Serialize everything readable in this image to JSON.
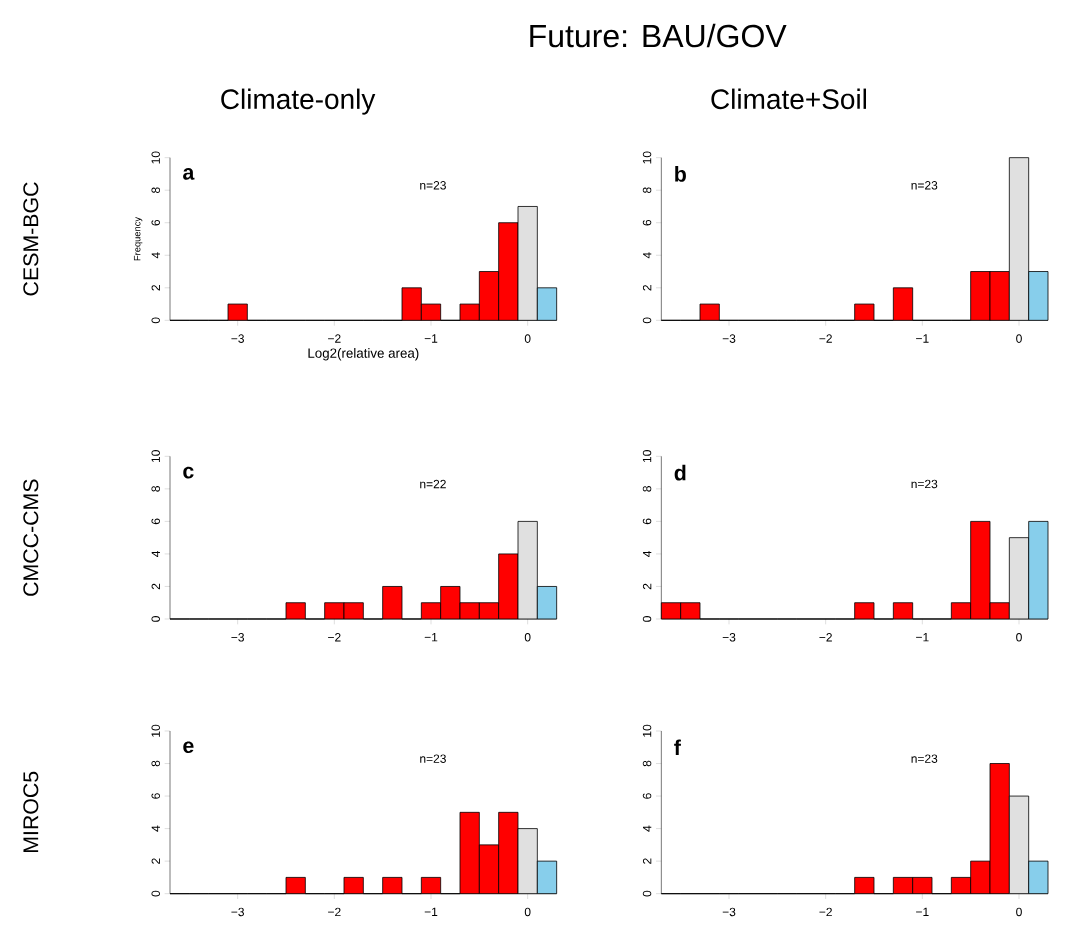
{
  "chart_data": [
    {
      "type": "histogram",
      "title": "Climate-only",
      "xlabel": "Log2(relative area)",
      "ylabel": "Frequency",
      "bins": [
        -3.7,
        -3.5,
        -3.3,
        -3.1,
        -2.9,
        -2.7,
        -2.5,
        -2.3,
        -2.1,
        -1.9,
        -1.7,
        -1.5,
        -1.3,
        -1.1,
        -0.9,
        -0.7,
        -0.5,
        -0.3,
        -0.1,
        0.1,
        0.3
      ],
      "values": [
        0,
        0,
        0,
        1,
        0,
        0,
        0,
        0,
        0,
        0,
        0,
        0,
        2,
        1,
        0,
        1,
        3,
        6,
        7,
        2
      ],
      "colors": [
        "#ff0000",
        "#ff0000",
        "#ff0000",
        "#ff0000",
        "#ff0000",
        "#ff0000",
        "#ff0000",
        "#ff0000",
        "#ff0000",
        "#ff0000",
        "#ff0000",
        "#ff0000",
        "#ff0000",
        "#ff0000",
        "#ff0000",
        "#ff0000",
        "#ff0000",
        "#ff0000",
        "#e0e0e0",
        "#87ceeb"
      ],
      "xlim": [
        -3.7,
        0.3
      ],
      "ylim": [
        0,
        10
      ],
      "xticks": [
        {
          "value": -3,
          "label": "−3"
        },
        {
          "value": -2,
          "label": "−2"
        },
        {
          "value": -1,
          "label": "−1"
        },
        0
      ],
      "yticks": [
        0,
        2,
        4,
        6,
        8,
        10
      ],
      "annotations": [
        "a",
        "n=23",
        "CESM-BGC",
        "Future: BAU/GOV"
      ]
    },
    {
      "type": "histogram",
      "title": "Climate+Soil",
      "bins": [
        -3.7,
        -3.5,
        -3.3,
        -3.1,
        -2.9,
        -2.7,
        -2.5,
        -2.3,
        -2.1,
        -1.9,
        -1.7,
        -1.5,
        -1.3,
        -1.1,
        -0.9,
        -0.7,
        -0.5,
        -0.3,
        -0.1,
        0.1,
        0.3
      ],
      "values": [
        0,
        0,
        1,
        0,
        0,
        0,
        0,
        0,
        0,
        0,
        1,
        0,
        2,
        0,
        0,
        0,
        3,
        3,
        10,
        3
      ],
      "colors": [
        "#ff0000",
        "#ff0000",
        "#ff0000",
        "#ff0000",
        "#ff0000",
        "#ff0000",
        "#ff0000",
        "#ff0000",
        "#ff0000",
        "#ff0000",
        "#ff0000",
        "#ff0000",
        "#ff0000",
        "#ff0000",
        "#ff0000",
        "#ff0000",
        "#ff0000",
        "#ff0000",
        "#e0e0e0",
        "#87ceeb"
      ],
      "xlim": [
        -3.7,
        0.3
      ],
      "ylim": [
        0,
        10
      ],
      "xticks": [
        {
          "value": -3,
          "label": "−3"
        },
        {
          "value": -2,
          "label": "−2"
        },
        {
          "value": -1,
          "label": "−1"
        },
        0
      ],
      "yticks": [
        0,
        2,
        4,
        6,
        8,
        10
      ],
      "annotations": [
        "b",
        "n=23"
      ]
    },
    {
      "type": "histogram",
      "bins": [
        -3.7,
        -3.5,
        -3.3,
        -3.1,
        -2.9,
        -2.7,
        -2.5,
        -2.3,
        -2.1,
        -1.9,
        -1.7,
        -1.5,
        -1.3,
        -1.1,
        -0.9,
        -0.7,
        -0.5,
        -0.3,
        -0.1,
        0.1,
        0.3
      ],
      "values": [
        0,
        0,
        0,
        0,
        0,
        0,
        1,
        0,
        1,
        1,
        0,
        2,
        0,
        1,
        2,
        1,
        1,
        4,
        6,
        2
      ],
      "colors": [
        "#ff0000",
        "#ff0000",
        "#ff0000",
        "#ff0000",
        "#ff0000",
        "#ff0000",
        "#ff0000",
        "#ff0000",
        "#ff0000",
        "#ff0000",
        "#ff0000",
        "#ff0000",
        "#ff0000",
        "#ff0000",
        "#ff0000",
        "#ff0000",
        "#ff0000",
        "#ff0000",
        "#e0e0e0",
        "#87ceeb"
      ],
      "xlim": [
        -3.7,
        0.3
      ],
      "ylim": [
        0,
        10
      ],
      "xticks": [
        {
          "value": -3,
          "label": "−3"
        },
        {
          "value": -2,
          "label": "−2"
        },
        {
          "value": -1,
          "label": "−1"
        },
        0
      ],
      "yticks": [
        0,
        2,
        4,
        6,
        8,
        10
      ],
      "annotations": [
        "c",
        "n=22",
        "CMCC-CMS"
      ]
    },
    {
      "type": "histogram",
      "bins": [
        -3.7,
        -3.5,
        -3.3,
        -3.1,
        -2.9,
        -2.7,
        -2.5,
        -2.3,
        -2.1,
        -1.9,
        -1.7,
        -1.5,
        -1.3,
        -1.1,
        -0.9,
        -0.7,
        -0.5,
        -0.3,
        -0.1,
        0.1,
        0.3
      ],
      "values": [
        1,
        1,
        0,
        0,
        0,
        0,
        0,
        0,
        0,
        0,
        1,
        0,
        1,
        0,
        0,
        1,
        6,
        1,
        5,
        6
      ],
      "colors": [
        "#ff0000",
        "#ff0000",
        "#ff0000",
        "#ff0000",
        "#ff0000",
        "#ff0000",
        "#ff0000",
        "#ff0000",
        "#ff0000",
        "#ff0000",
        "#ff0000",
        "#ff0000",
        "#ff0000",
        "#ff0000",
        "#ff0000",
        "#ff0000",
        "#ff0000",
        "#ff0000",
        "#e0e0e0",
        "#87ceeb"
      ],
      "xlim": [
        -3.7,
        0.3
      ],
      "ylim": [
        0,
        10
      ],
      "xticks": [
        {
          "value": -3,
          "label": "−3"
        },
        {
          "value": -2,
          "label": "−2"
        },
        {
          "value": -1,
          "label": "−1"
        },
        0
      ],
      "yticks": [
        0,
        2,
        4,
        6,
        8,
        10
      ],
      "annotations": [
        "d",
        "n=23"
      ]
    },
    {
      "type": "histogram",
      "bins": [
        -3.7,
        -3.5,
        -3.3,
        -3.1,
        -2.9,
        -2.7,
        -2.5,
        -2.3,
        -2.1,
        -1.9,
        -1.7,
        -1.5,
        -1.3,
        -1.1,
        -0.9,
        -0.7,
        -0.5,
        -0.3,
        -0.1,
        0.1,
        0.3
      ],
      "values": [
        0,
        0,
        0,
        0,
        0,
        0,
        1,
        0,
        0,
        1,
        0,
        1,
        0,
        1,
        0,
        5,
        3,
        5,
        4,
        2
      ],
      "colors": [
        "#ff0000",
        "#ff0000",
        "#ff0000",
        "#ff0000",
        "#ff0000",
        "#ff0000",
        "#ff0000",
        "#ff0000",
        "#ff0000",
        "#ff0000",
        "#ff0000",
        "#ff0000",
        "#ff0000",
        "#ff0000",
        "#ff0000",
        "#ff0000",
        "#ff0000",
        "#ff0000",
        "#e0e0e0",
        "#87ceeb"
      ],
      "xlim": [
        -3.7,
        0.3
      ],
      "ylim": [
        0,
        10
      ],
      "xticks": [
        {
          "value": -3,
          "label": "−3"
        },
        {
          "value": -2,
          "label": "−2"
        },
        {
          "value": -1,
          "label": "−1"
        },
        0
      ],
      "yticks": [
        0,
        2,
        4,
        6,
        8,
        10
      ],
      "annotations": [
        "e",
        "n=23",
        "MIROC5"
      ]
    },
    {
      "type": "histogram",
      "bins": [
        -3.7,
        -3.5,
        -3.3,
        -3.1,
        -2.9,
        -2.7,
        -2.5,
        -2.3,
        -2.1,
        -1.9,
        -1.7,
        -1.5,
        -1.3,
        -1.1,
        -0.9,
        -0.7,
        -0.5,
        -0.3,
        -0.1,
        0.1,
        0.3
      ],
      "values": [
        0,
        0,
        0,
        0,
        0,
        0,
        0,
        0,
        0,
        0,
        1,
        0,
        1,
        1,
        0,
        1,
        2,
        8,
        6,
        2
      ],
      "colors": [
        "#ff0000",
        "#ff0000",
        "#ff0000",
        "#ff0000",
        "#ff0000",
        "#ff0000",
        "#ff0000",
        "#ff0000",
        "#ff0000",
        "#ff0000",
        "#ff0000",
        "#ff0000",
        "#ff0000",
        "#ff0000",
        "#ff0000",
        "#ff0000",
        "#ff0000",
        "#ff0000",
        "#e0e0e0",
        "#87ceeb"
      ],
      "xlim": [
        -3.7,
        0.3
      ],
      "ylim": [
        0,
        10
      ],
      "xticks": [
        {
          "value": -3,
          "label": "−3"
        },
        {
          "value": -2,
          "label": "−2"
        },
        {
          "value": -1,
          "label": "−1"
        },
        0
      ],
      "yticks": [
        0,
        2,
        4,
        6,
        8,
        10
      ],
      "annotations": [
        "f",
        "n=23"
      ]
    }
  ]
}
